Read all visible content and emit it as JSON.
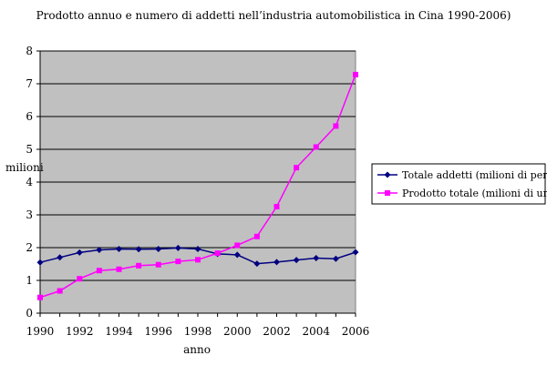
{
  "chart_data": {
    "type": "line",
    "title": "Prodotto annuo e numero di addetti nell’industria automobilistica in Cina 1990-2006)",
    "xlabel": "anno",
    "ylabel": "milioni",
    "x": [
      1990,
      1991,
      1992,
      1993,
      1994,
      1995,
      1996,
      1997,
      1998,
      1999,
      2000,
      2001,
      2002,
      2003,
      2004,
      2005,
      2006
    ],
    "x_ticks": [
      1990,
      1992,
      1994,
      1996,
      1998,
      2000,
      2002,
      2004,
      2006
    ],
    "y_ticks": [
      0,
      1,
      2,
      3,
      4,
      5,
      6,
      7,
      8
    ],
    "xlim": [
      1990,
      2006
    ],
    "ylim": [
      0,
      8
    ],
    "grid": true,
    "plot_background": "#c0c0c0",
    "legend_position": "right",
    "series": [
      {
        "name": "Totale addetti (milioni di persone)",
        "marker": "diamond",
        "color": "#000080",
        "values": [
          1.55,
          1.7,
          1.85,
          1.93,
          1.96,
          1.95,
          1.96,
          1.99,
          1.96,
          1.81,
          1.78,
          1.51,
          1.56,
          1.62,
          1.68,
          1.66,
          1.86
        ]
      },
      {
        "name": "Prodotto totale (milioni di unità)",
        "marker": "square",
        "color": "#ff00ff",
        "values": [
          0.48,
          0.68,
          1.05,
          1.3,
          1.34,
          1.45,
          1.48,
          1.58,
          1.63,
          1.83,
          2.07,
          2.34,
          3.25,
          4.44,
          5.07,
          5.71,
          7.28
        ]
      }
    ]
  }
}
